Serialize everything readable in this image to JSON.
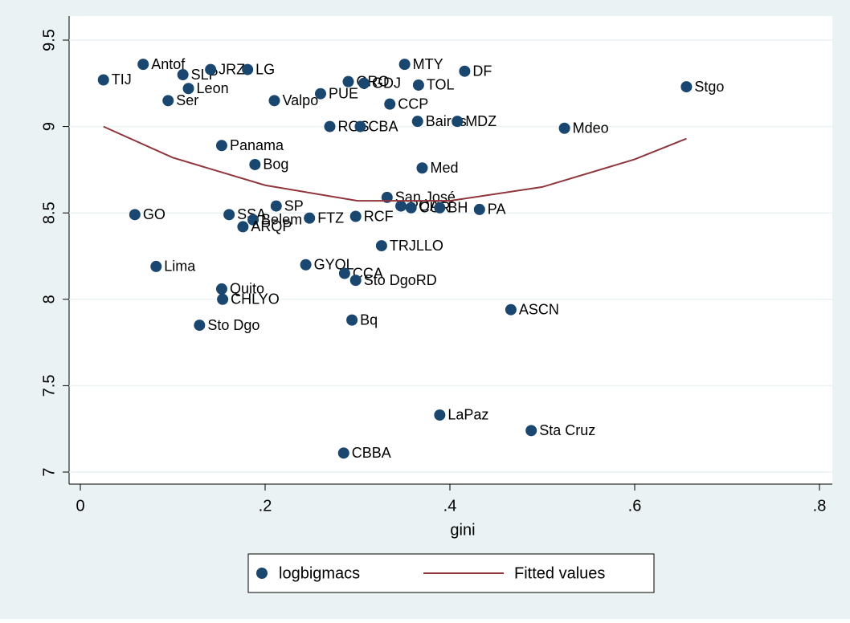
{
  "chart_data": {
    "type": "scatter",
    "x_label": "gini",
    "grid": true,
    "xlim": [
      0,
      0.8
    ],
    "ylim": [
      7,
      9.5
    ],
    "xticks": [
      0,
      {
        "value": 0.2,
        "label": ".2"
      },
      {
        "value": 0.4,
        "label": ".4"
      },
      {
        "value": 0.6,
        "label": ".6"
      },
      {
        "value": 0.8,
        "label": ".8"
      }
    ],
    "yticks": [
      7,
      7.5,
      8,
      8.5,
      9,
      9.5
    ],
    "series": [
      {
        "name": "logbigmacs",
        "type": "scatter",
        "color": "#1a476f",
        "labels": [
          "TIJ",
          "Antof",
          "SLP",
          "JRZ",
          "LG",
          "Leon",
          "Ser",
          "Valpo",
          "PUE",
          "QRO",
          "GDJ",
          "MTY",
          "TOL",
          "DF",
          "CCP",
          "Stgo",
          "ROS",
          "CBA",
          "Baires",
          "MDZ",
          "Mdeo",
          "Panama",
          "Bog",
          "Med",
          "San José",
          "GO",
          "SSA",
          "SP",
          "Belem",
          "ARQP",
          "FTZ",
          "RCF",
          "POA",
          "CUR",
          "BH",
          "PA",
          "TRJLLO",
          "Lima",
          "GYQL",
          "CCA",
          "Sto DgoRD",
          "Quito",
          "CHLYO",
          "ASCN",
          "Sto Dgo",
          "Bq",
          "LaPaz",
          "Sta Cruz",
          "CBBA"
        ],
        "x": [
          0.025,
          0.068,
          0.111,
          0.141,
          0.181,
          0.117,
          0.095,
          0.21,
          0.26,
          0.29,
          0.307,
          0.351,
          0.366,
          0.416,
          0.335,
          0.656,
          0.27,
          0.303,
          0.365,
          0.408,
          0.524,
          0.153,
          0.189,
          0.37,
          0.332,
          0.059,
          0.161,
          0.212,
          0.187,
          0.176,
          0.248,
          0.298,
          0.347,
          0.358,
          0.389,
          0.432,
          0.326,
          0.082,
          0.244,
          0.286,
          0.298,
          0.153,
          0.154,
          0.466,
          0.129,
          0.294,
          0.389,
          0.488,
          0.285
        ],
        "values": [
          9.27,
          9.36,
          9.3,
          9.33,
          9.33,
          9.22,
          9.15,
          9.15,
          9.19,
          9.26,
          9.25,
          9.36,
          9.24,
          9.32,
          9.13,
          9.23,
          9.0,
          9.0,
          9.03,
          9.03,
          8.99,
          8.89,
          8.78,
          8.76,
          8.59,
          8.49,
          8.49,
          8.54,
          8.46,
          8.42,
          8.47,
          8.48,
          8.54,
          8.53,
          8.53,
          8.52,
          8.31,
          8.19,
          8.2,
          8.15,
          8.11,
          8.06,
          8.0,
          7.94,
          7.85,
          7.88,
          7.33,
          7.24,
          7.11
        ]
      },
      {
        "name": "Fitted values",
        "type": "line",
        "color": "#90353b",
        "x": [
          0.025,
          0.1,
          0.2,
          0.3,
          0.4,
          0.5,
          0.6,
          0.656
        ],
        "values": [
          9.0,
          8.82,
          8.66,
          8.57,
          8.57,
          8.65,
          8.81,
          8.93
        ]
      }
    ]
  }
}
